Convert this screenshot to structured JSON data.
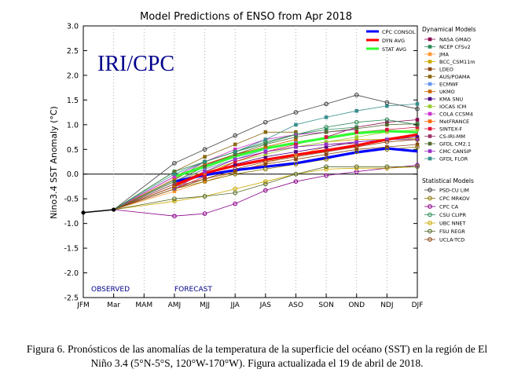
{
  "caption": "Figura 6. Pronósticos de las anomalías de la temperatura de la superficie del océano (SST) en la región de El Niño 3.4 (5°N-5°S, 120°W-170°W). Figura actualizada el 19 de abril de 2018.",
  "chart_data": {
    "type": "line",
    "title": "Model Predictions of ENSO from Apr 2018",
    "watermark": "IRI/CPC",
    "ylabel": "Nino3.4 SST Anomaly (°C)",
    "xlabel": "",
    "ylim": [
      -2.5,
      3.0
    ],
    "yticks": [
      "3.0",
      "2.5",
      "2.0",
      "1.5",
      "1.0",
      "0.5",
      "0.0",
      "-0.5",
      "-1.0",
      "-1.5",
      "-2.0",
      "-2.5"
    ],
    "categories": [
      "JFM",
      "Mar",
      "MAM",
      "AMJ",
      "MJJ",
      "JJA",
      "JAS",
      "ASO",
      "SON",
      "OND",
      "NDJ",
      "DJF"
    ],
    "observed_label": "OBSERVED",
    "forecast_label": "FORECAST",
    "observed": [
      -0.78,
      -0.72
    ],
    "summary_series": [
      {
        "name": "CPC CONSOL",
        "color": "#0000ff",
        "values": [
          null,
          null,
          null,
          -0.15,
          -0.02,
          0.08,
          0.15,
          0.22,
          0.33,
          0.44,
          0.52,
          0.46
        ]
      },
      {
        "name": "DYN AVG",
        "color": "#ff0000",
        "values": [
          null,
          null,
          null,
          -0.22,
          0.02,
          0.17,
          0.29,
          0.39,
          0.48,
          0.58,
          0.7,
          0.8
        ]
      },
      {
        "name": "STAT AVG",
        "color": "#33ff33",
        "values": [
          null,
          null,
          null,
          -0.05,
          0.15,
          0.36,
          0.52,
          0.63,
          0.73,
          0.83,
          0.87,
          0.85
        ]
      }
    ],
    "legend_dyn_title": "Dynamical Models",
    "dynamical_models": [
      {
        "name": "NASA GMAO",
        "color": "#8b0a50",
        "marker": "square",
        "values": [
          null,
          null,
          null,
          -0.05,
          0.18,
          0.4,
          0.52,
          0.62,
          0.75,
          0.95,
          1.05,
          1.1
        ]
      },
      {
        "name": "NCEP CFSv2",
        "color": "#2e8b57",
        "marker": "square",
        "values": [
          null,
          null,
          null,
          -0.12,
          0.25,
          0.45,
          0.62,
          0.8,
          0.9,
          0.95,
          null,
          null
        ]
      },
      {
        "name": "JMA",
        "color": "#ff9933",
        "marker": "square",
        "values": [
          null,
          null,
          null,
          -0.35,
          -0.15,
          0.05,
          0.22,
          0.38,
          0.55,
          null,
          null,
          null
        ]
      },
      {
        "name": "BCC_CSM11m",
        "color": "#ccaa00",
        "marker": "square",
        "values": [
          null,
          null,
          null,
          -0.2,
          0.1,
          0.3,
          0.45,
          0.55,
          0.65,
          0.7,
          0.7,
          0.72
        ]
      },
      {
        "name": "LDEO",
        "color": "#8b4513",
        "marker": "square",
        "values": [
          null,
          null,
          null,
          -0.3,
          -0.1,
          0.05,
          0.2,
          0.3,
          0.4,
          0.5,
          0.55,
          0.6
        ]
      },
      {
        "name": "AUS/POAMA",
        "color": "#8b6914",
        "marker": "square",
        "values": [
          null,
          null,
          null,
          0.05,
          0.35,
          0.6,
          0.85,
          0.85,
          null,
          null,
          null,
          null
        ]
      },
      {
        "name": "ECMWF",
        "color": "#6495ed",
        "marker": "square",
        "values": [
          null,
          null,
          null,
          -0.15,
          0.1,
          0.3,
          0.5,
          0.65,
          null,
          null,
          null,
          null
        ]
      },
      {
        "name": "UKMO",
        "color": "#cd6600",
        "marker": "square",
        "values": [
          null,
          null,
          null,
          -0.1,
          0.2,
          0.4,
          0.55,
          0.7,
          null,
          null,
          null,
          null
        ]
      },
      {
        "name": "KMA SNU",
        "color": "#4b0082",
        "marker": "square",
        "values": [
          null,
          null,
          null,
          -0.25,
          0.0,
          0.2,
          0.35,
          0.45,
          0.55,
          0.65,
          0.7,
          0.75
        ]
      },
      {
        "name": "IOCAS ICM",
        "color": "#9acd32",
        "marker": "square",
        "values": [
          null,
          null,
          null,
          -0.2,
          0.05,
          0.25,
          0.4,
          0.55,
          0.65,
          0.75,
          0.85,
          0.9
        ]
      },
      {
        "name": "COLA CCSM4",
        "color": "#cc33cc",
        "marker": "square",
        "values": [
          null,
          null,
          null,
          -0.05,
          0.25,
          0.5,
          0.7,
          0.8,
          0.85,
          0.9,
          null,
          null
        ]
      },
      {
        "name": "MetFRANCE",
        "color": "#ff6600",
        "marker": "square",
        "values": [
          null,
          null,
          null,
          -0.25,
          0.0,
          0.25,
          0.45,
          0.55,
          null,
          null,
          null,
          null
        ]
      },
      {
        "name": "SINTEX-F",
        "color": "#dc143c",
        "marker": "square",
        "values": [
          null,
          null,
          null,
          -0.3,
          -0.05,
          0.25,
          0.45,
          0.6,
          0.75,
          0.85,
          0.9,
          0.95
        ]
      },
      {
        "name": "CS-IRI-MM",
        "color": "#993366",
        "marker": "square",
        "values": [
          null,
          null,
          null,
          -0.2,
          0.05,
          0.3,
          0.45,
          0.55,
          0.6,
          0.62,
          null,
          null
        ]
      },
      {
        "name": "GFDL CM2.1",
        "color": "#556b2f",
        "marker": "square",
        "values": [
          null,
          null,
          null,
          -0.15,
          0.15,
          0.4,
          0.6,
          0.75,
          0.85,
          0.92,
          1.0,
          1.02
        ]
      },
      {
        "name": "CMC CANSIP",
        "color": "#9932cc",
        "marker": "square",
        "values": [
          null,
          null,
          null,
          -0.3,
          0.05,
          0.3,
          0.45,
          0.55,
          0.6,
          0.65,
          0.7,
          0.7
        ]
      },
      {
        "name": "GFDL FLOR",
        "color": "#3a8e8e",
        "marker": "square",
        "values": [
          null,
          null,
          null,
          0.0,
          0.25,
          0.45,
          0.7,
          1.0,
          1.15,
          1.28,
          1.38,
          1.42
        ]
      }
    ],
    "legend_stat_title": "Statistical Models",
    "statistical_models": [
      {
        "name": "PSD-CU LIM",
        "color": "#444444",
        "marker": "circle",
        "values": [
          null,
          null,
          null,
          0.22,
          0.5,
          0.78,
          1.05,
          1.25,
          1.42,
          1.6,
          1.45,
          1.32
        ]
      },
      {
        "name": "CPC MRKOV",
        "color": "#8b7500",
        "marker": "circle",
        "values": [
          null,
          null,
          null,
          -0.3,
          -0.15,
          0.0,
          0.1,
          0.2,
          0.3,
          0.45,
          0.5,
          0.55
        ]
      },
      {
        "name": "CPC CA",
        "color": "#8b008b",
        "marker": "circle",
        "values": [
          null,
          null,
          null,
          -0.85,
          -0.8,
          -0.6,
          -0.33,
          -0.15,
          -0.03,
          0.05,
          0.12,
          0.18
        ]
      },
      {
        "name": "CSU CLIPR",
        "color": "#2e8b57",
        "marker": "circle",
        "values": [
          null,
          null,
          null,
          0.05,
          0.25,
          0.45,
          0.65,
          0.8,
          0.95,
          1.05,
          1.1,
          1.0
        ]
      },
      {
        "name": "UBC NNET",
        "color": "#ccaa00",
        "marker": "circle",
        "values": [
          null,
          null,
          null,
          -0.55,
          -0.45,
          -0.3,
          -0.15,
          0.0,
          0.1,
          0.12,
          0.12,
          0.15
        ]
      },
      {
        "name": "FSU REGR",
        "color": "#556b2f",
        "marker": "circle",
        "values": [
          null,
          null,
          null,
          -0.5,
          -0.45,
          -0.38,
          -0.2,
          0.0,
          0.15,
          0.15,
          0.15,
          0.15
        ]
      },
      {
        "name": "UCLA-TCD",
        "color": "#8b4513",
        "marker": "circle",
        "values": [
          null,
          null,
          null,
          -0.25,
          -0.1,
          0.1,
          0.25,
          0.35,
          0.45,
          0.55,
          0.65,
          0.7
        ]
      }
    ]
  }
}
